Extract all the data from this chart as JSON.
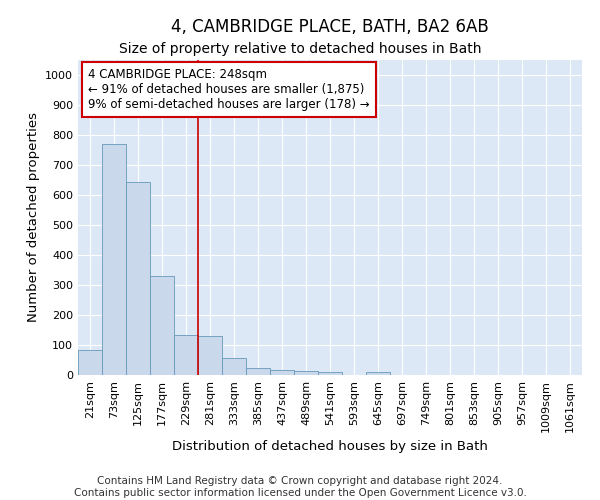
{
  "title": "4, CAMBRIDGE PLACE, BATH, BA2 6AB",
  "subtitle": "Size of property relative to detached houses in Bath",
  "xlabel": "Distribution of detached houses by size in Bath",
  "ylabel": "Number of detached properties",
  "categories": [
    "21sqm",
    "73sqm",
    "125sqm",
    "177sqm",
    "229sqm",
    "281sqm",
    "333sqm",
    "385sqm",
    "437sqm",
    "489sqm",
    "541sqm",
    "593sqm",
    "645sqm",
    "697sqm",
    "749sqm",
    "801sqm",
    "853sqm",
    "905sqm",
    "957sqm",
    "1009sqm",
    "1061sqm"
  ],
  "values": [
    83,
    770,
    643,
    330,
    135,
    130,
    57,
    22,
    17,
    12,
    10,
    0,
    10,
    0,
    0,
    0,
    0,
    0,
    0,
    0,
    0
  ],
  "bar_color": "#c9d9eb",
  "bar_edge_color": "#6699bb",
  "vline_x_index": 4.5,
  "vline_color": "#cc0000",
  "annotation_text": "4 CAMBRIDGE PLACE: 248sqm\n← 91% of detached houses are smaller (1,875)\n9% of semi-detached houses are larger (178) →",
  "annotation_box_color": "#ffffff",
  "annotation_box_edge": "#cc0000",
  "ylim": [
    0,
    1050
  ],
  "yticks": [
    0,
    100,
    200,
    300,
    400,
    500,
    600,
    700,
    800,
    900,
    1000
  ],
  "footer": "Contains HM Land Registry data © Crown copyright and database right 2024.\nContains public sector information licensed under the Open Government Licence v3.0.",
  "figure_bg": "#ffffff",
  "plot_bg": "#dce8f5",
  "title_fontsize": 12,
  "subtitle_fontsize": 10,
  "footer_fontsize": 7.5,
  "axis_label_fontsize": 9.5,
  "tick_fontsize": 8
}
